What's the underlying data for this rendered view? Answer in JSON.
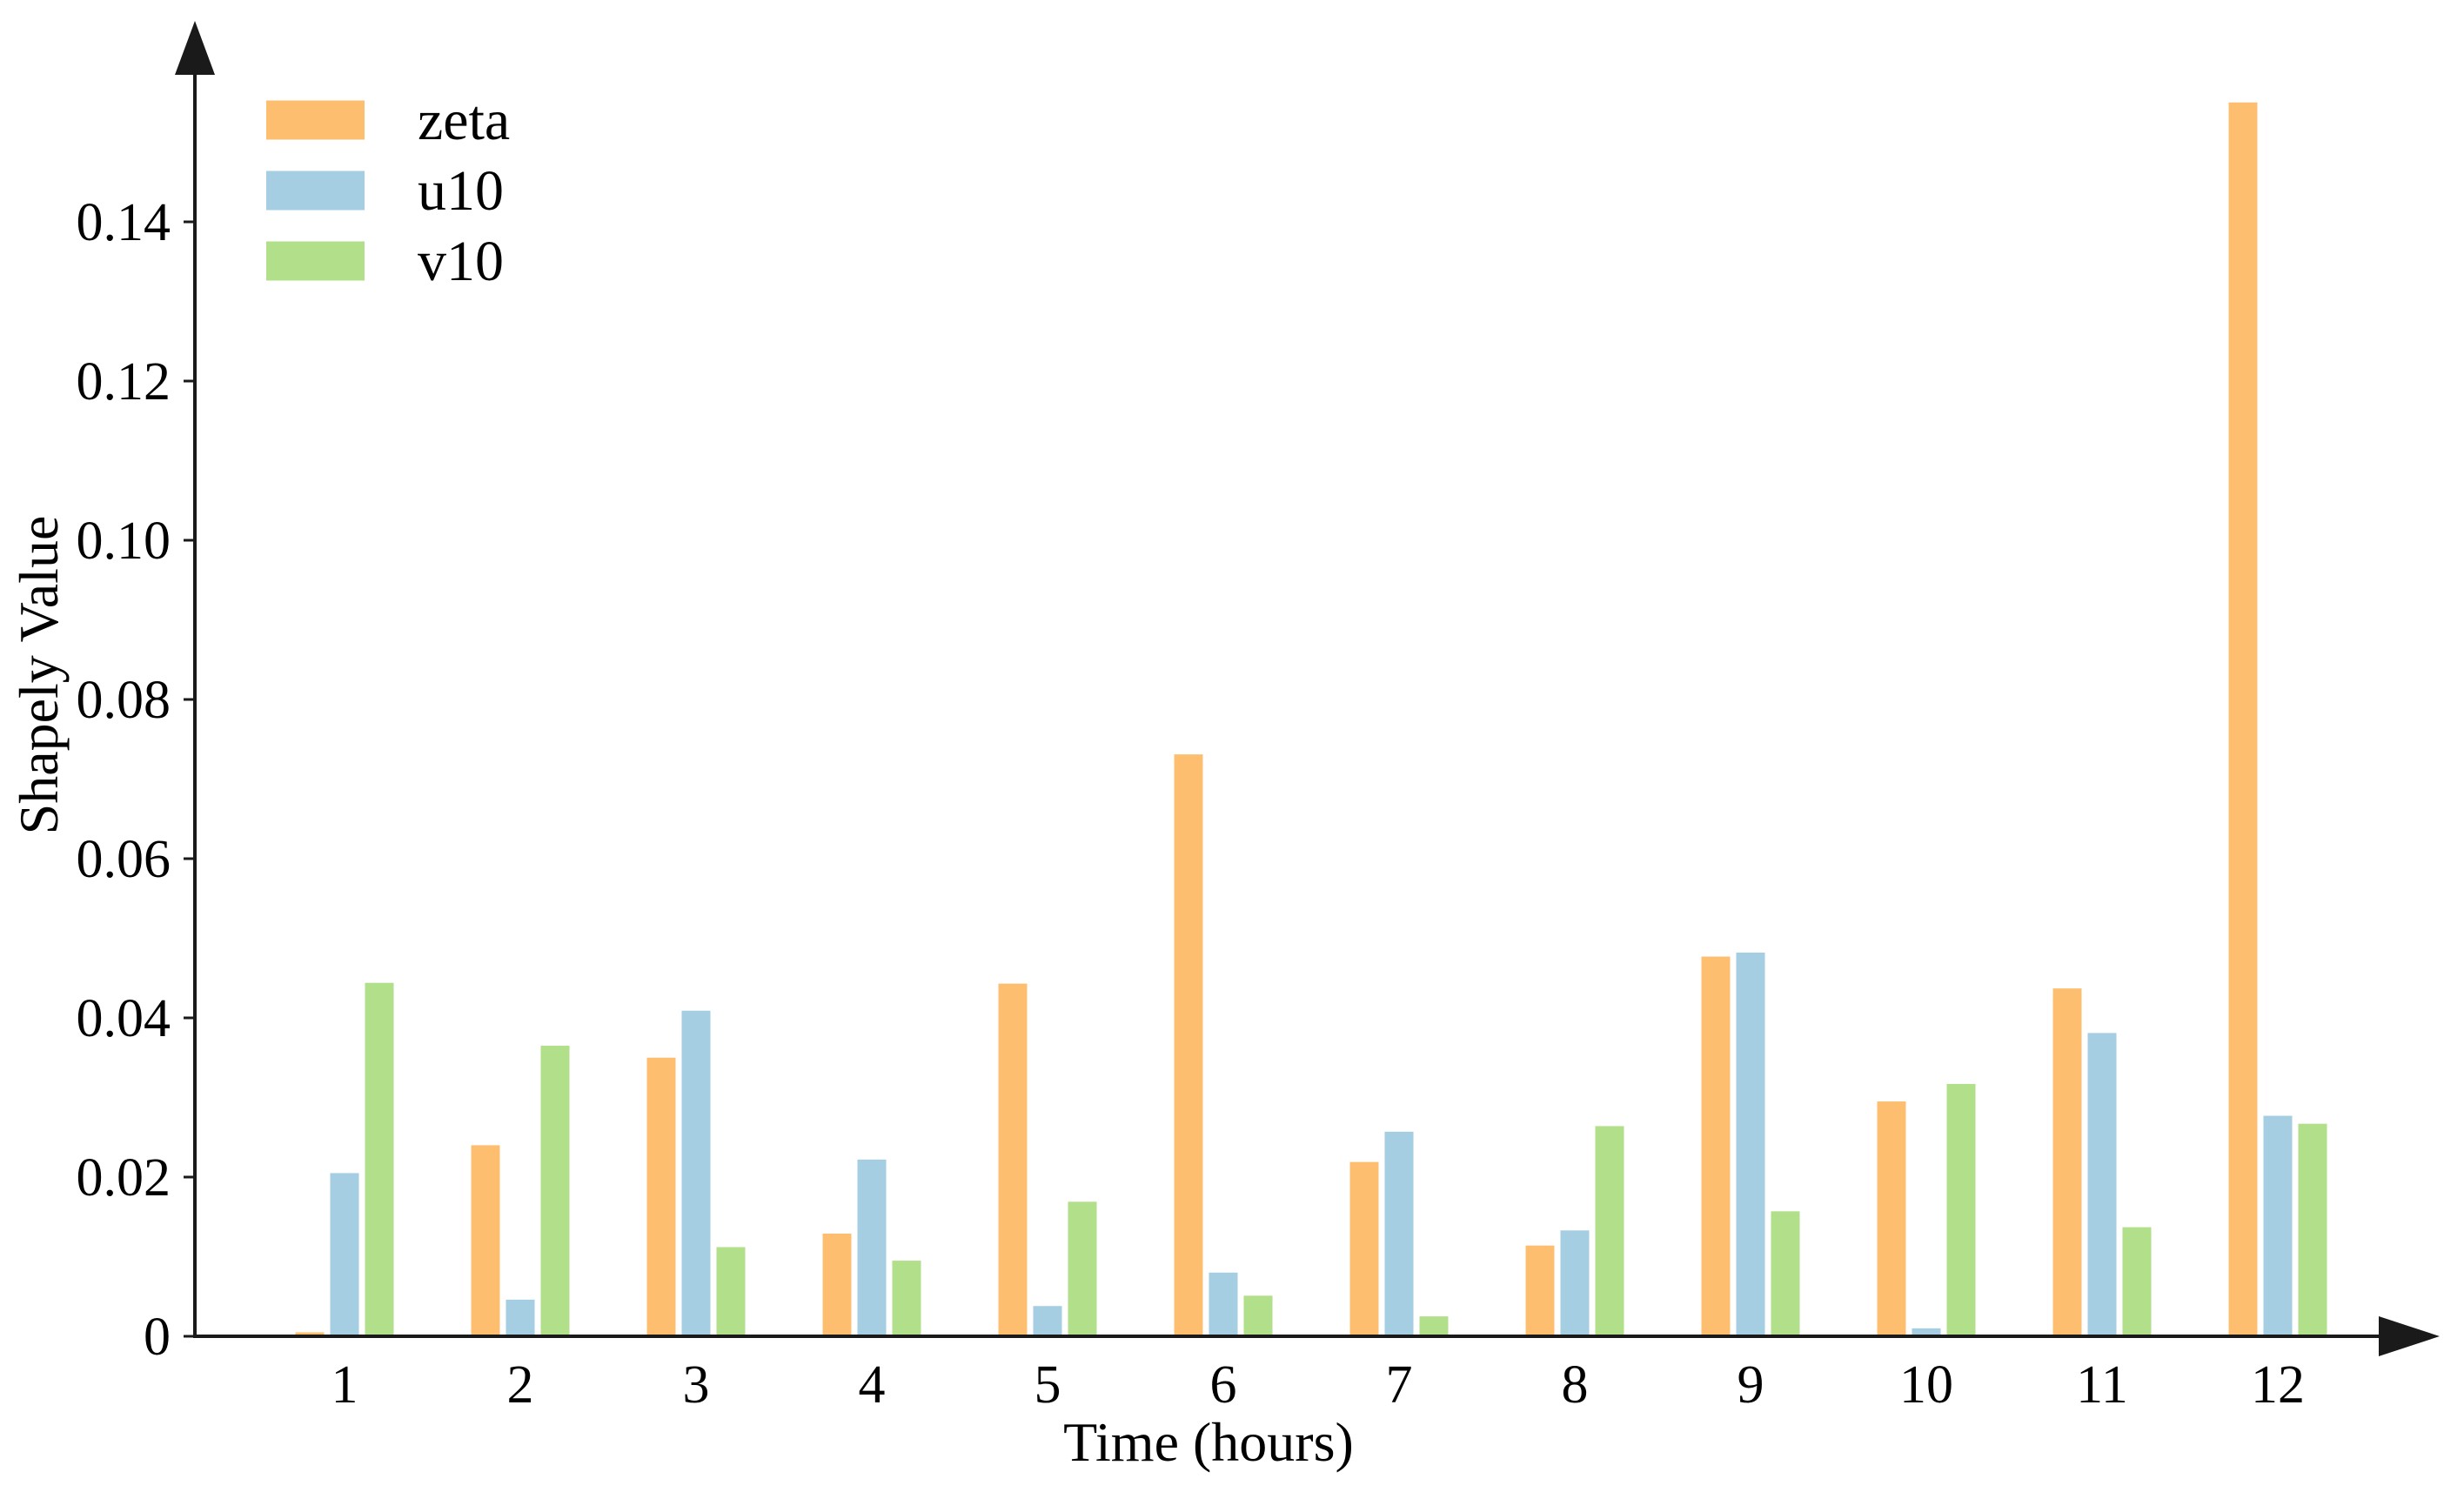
{
  "chart_data": {
    "type": "bar",
    "title": "",
    "xlabel": "Time (hours)",
    "ylabel": "Shapely Value",
    "categories": [
      "1",
      "2",
      "3",
      "4",
      "5",
      "6",
      "7",
      "8",
      "9",
      "10",
      "11",
      "12"
    ],
    "series": [
      {
        "name": "zeta",
        "color": "#fdbf6f",
        "values": [
          0.0005,
          0.024,
          0.035,
          0.0129,
          0.0443,
          0.0731,
          0.0219,
          0.0114,
          0.0477,
          0.0295,
          0.0437,
          0.155
        ]
      },
      {
        "name": "u10",
        "color": "#a6cee3",
        "values": [
          0.0205,
          0.0046,
          0.0409,
          0.0222,
          0.0038,
          0.008,
          0.0257,
          0.0133,
          0.0482,
          0.001,
          0.0381,
          0.0277
        ]
      },
      {
        "name": "v10",
        "color": "#b2df8a",
        "values": [
          0.0444,
          0.0365,
          0.0112,
          0.0095,
          0.0169,
          0.0051,
          0.0025,
          0.0264,
          0.0157,
          0.0317,
          0.0137,
          0.0267
        ]
      }
    ],
    "y_ticks": [
      0,
      0.02,
      0.04,
      0.06,
      0.08,
      0.1,
      0.12,
      0.14
    ],
    "ylim": [
      0,
      0.16
    ],
    "grid": false,
    "legend_position": "upper-left",
    "axis_color": "#1a1a1a"
  }
}
